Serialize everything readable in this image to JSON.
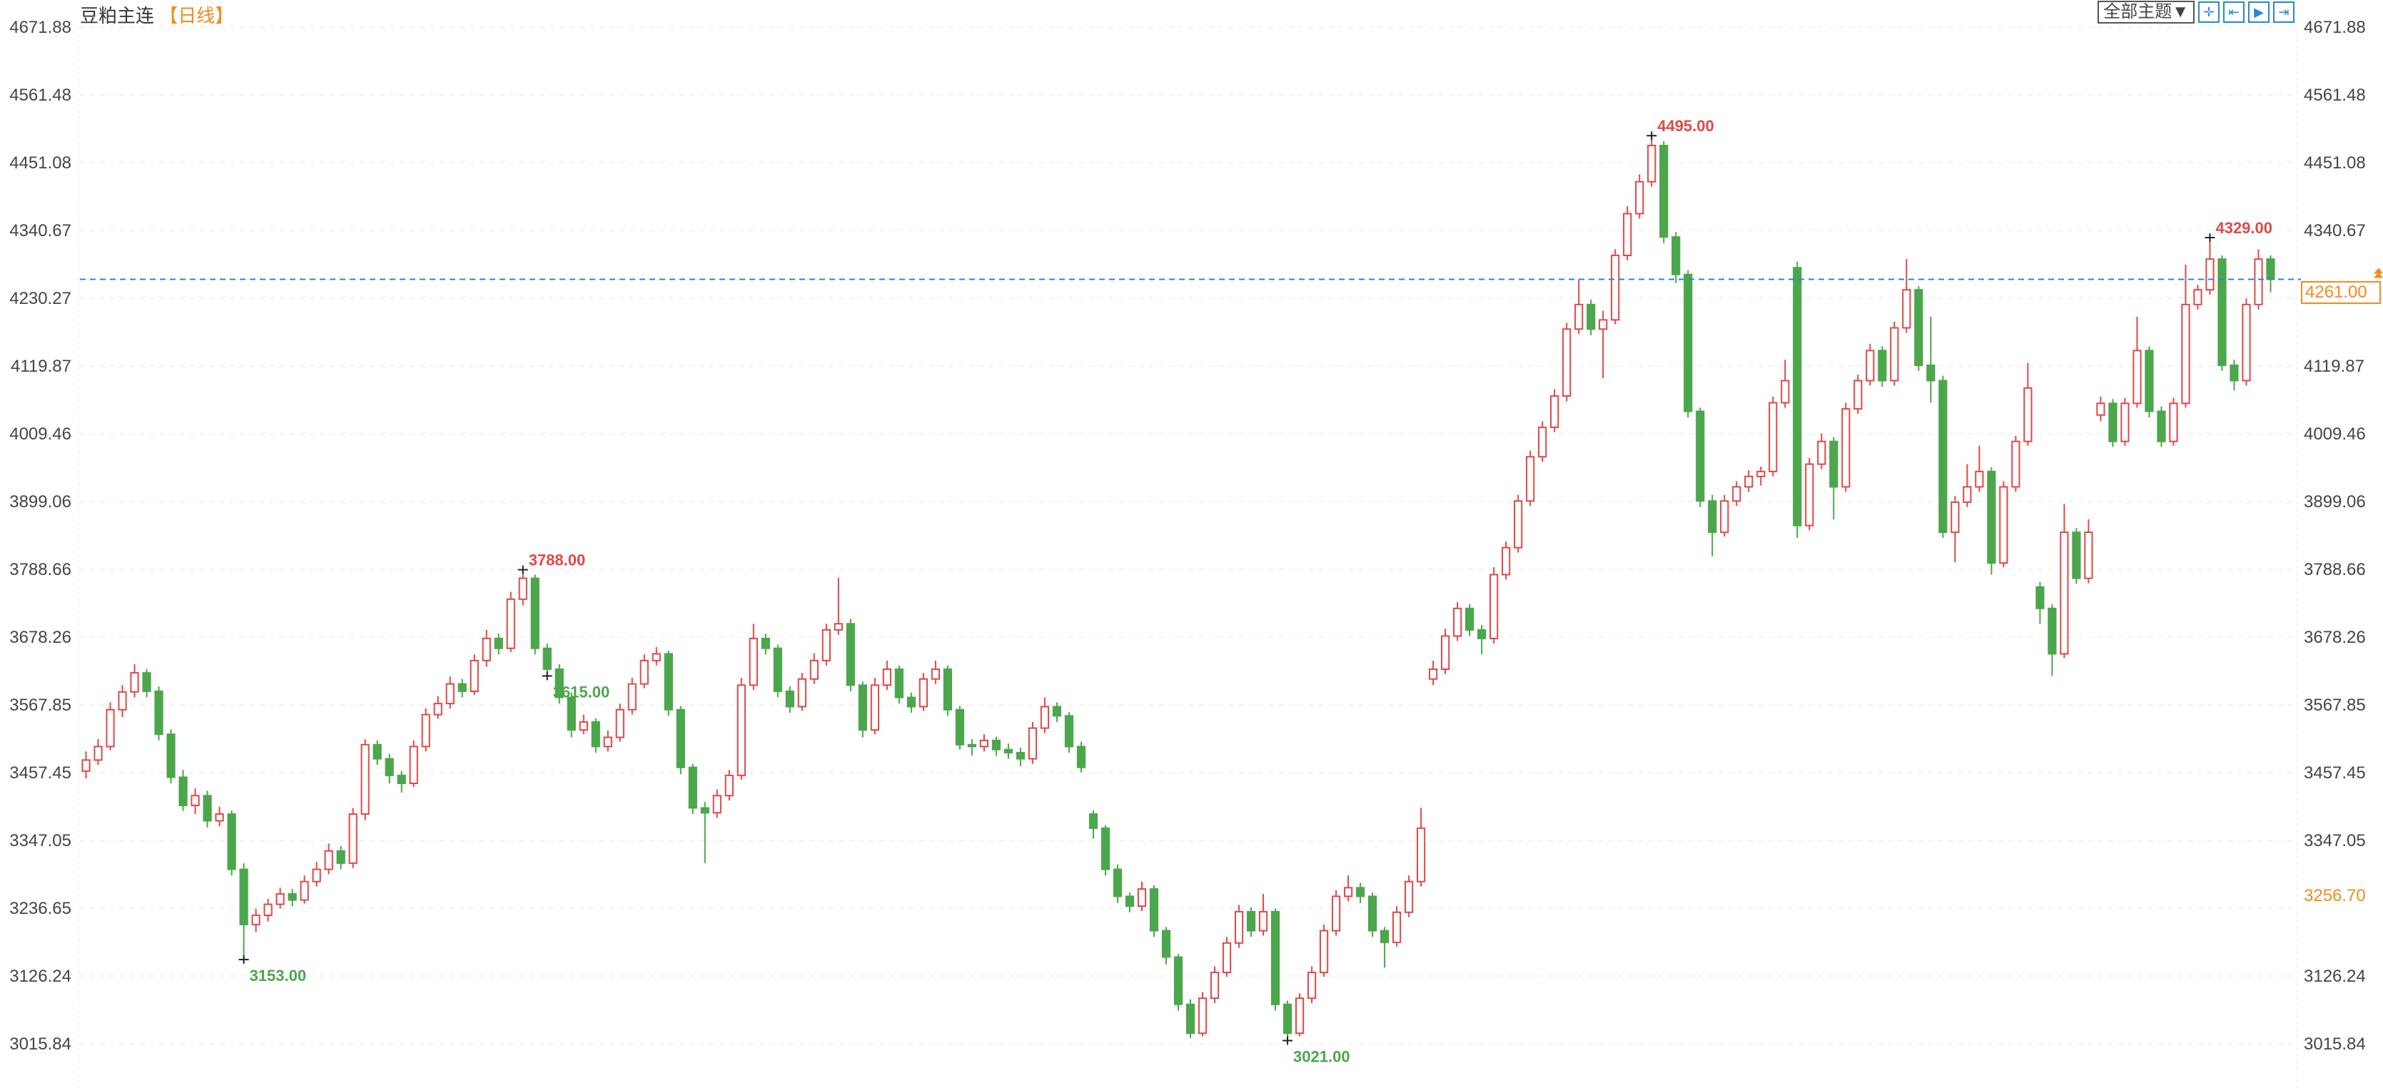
{
  "header": {
    "instrument": "豆粕主连",
    "period": "【日线】"
  },
  "toolbar": {
    "theme_label": "全部主题▼",
    "tools": [
      {
        "name": "crosshair-icon",
        "glyph": "✛"
      },
      {
        "name": "zoom-range-icon",
        "glyph": "⇤"
      },
      {
        "name": "play-icon",
        "glyph": "▶"
      },
      {
        "name": "go-latest-icon",
        "glyph": "⇥"
      }
    ]
  },
  "colors": {
    "up": "#e04848",
    "down": "#4ca64c",
    "last_line": "#2a86d0",
    "accent": "#f08c1e",
    "high_label": "#e04848",
    "low_label": "#4ca64c"
  },
  "right_axis": {
    "last_price": "4261.00",
    "ref_price": "3256.70"
  },
  "chart_data": {
    "type": "candlestick",
    "title": "豆粕主连",
    "ylim": [
      3015.84,
      4671.88
    ],
    "y_ticks": [
      "4671.88",
      "4561.48",
      "4451.08",
      "4340.67",
      "4230.27",
      "4119.87",
      "4009.46",
      "3899.06",
      "3788.66",
      "3678.26",
      "3567.85",
      "3457.45",
      "3347.05",
      "3236.65",
      "3126.24",
      "3015.84"
    ],
    "last_price": 4261.0,
    "annotations": [
      {
        "label": "3788.00",
        "value": 3788,
        "type": "high"
      },
      {
        "label": "3153.00",
        "value": 3153,
        "type": "low"
      },
      {
        "label": "3021.00",
        "value": 3021,
        "type": "low"
      },
      {
        "label": "4495.00",
        "value": 4495,
        "type": "high"
      },
      {
        "label": "3615.00",
        "value": 3615,
        "type": "low"
      },
      {
        "label": "4329.00",
        "value": 4329,
        "type": "high"
      }
    ],
    "ohlc": [
      [
        3460,
        3492,
        3448,
        3478
      ],
      [
        3478,
        3512,
        3470,
        3500
      ],
      [
        3500,
        3572,
        3494,
        3560
      ],
      [
        3560,
        3600,
        3548,
        3589
      ],
      [
        3589,
        3634,
        3580,
        3620
      ],
      [
        3620,
        3626,
        3580,
        3590
      ],
      [
        3590,
        3598,
        3510,
        3520
      ],
      [
        3520,
        3528,
        3440,
        3450
      ],
      [
        3450,
        3462,
        3395,
        3404
      ],
      [
        3404,
        3432,
        3390,
        3420
      ],
      [
        3420,
        3428,
        3368,
        3379
      ],
      [
        3379,
        3402,
        3370,
        3390
      ],
      [
        3390,
        3396,
        3290,
        3300
      ],
      [
        3300,
        3310,
        3153,
        3210
      ],
      [
        3210,
        3236,
        3198,
        3225
      ],
      [
        3225,
        3252,
        3215,
        3243
      ],
      [
        3243,
        3270,
        3236,
        3260
      ],
      [
        3260,
        3268,
        3240,
        3250
      ],
      [
        3250,
        3290,
        3244,
        3280
      ],
      [
        3280,
        3312,
        3272,
        3300
      ],
      [
        3300,
        3342,
        3292,
        3330
      ],
      [
        3330,
        3338,
        3300,
        3310
      ],
      [
        3310,
        3400,
        3302,
        3390
      ],
      [
        3390,
        3512,
        3380,
        3503
      ],
      [
        3503,
        3510,
        3470,
        3480
      ],
      [
        3480,
        3488,
        3440,
        3453
      ],
      [
        3453,
        3460,
        3425,
        3440
      ],
      [
        3440,
        3510,
        3434,
        3500
      ],
      [
        3500,
        3562,
        3492,
        3552
      ],
      [
        3552,
        3582,
        3545,
        3570
      ],
      [
        3570,
        3614,
        3562,
        3602
      ],
      [
        3602,
        3610,
        3580,
        3590
      ],
      [
        3590,
        3650,
        3584,
        3640
      ],
      [
        3640,
        3690,
        3630,
        3676
      ],
      [
        3676,
        3684,
        3650,
        3660
      ],
      [
        3660,
        3752,
        3654,
        3740
      ],
      [
        3740,
        3788,
        3730,
        3774
      ],
      [
        3774,
        3780,
        3650,
        3660
      ],
      [
        3660,
        3668,
        3615,
        3626
      ],
      [
        3626,
        3634,
        3570,
        3580
      ],
      [
        3580,
        3588,
        3515,
        3527
      ],
      [
        3527,
        3552,
        3520,
        3540
      ],
      [
        3540,
        3546,
        3490,
        3500
      ],
      [
        3500,
        3526,
        3492,
        3515
      ],
      [
        3515,
        3570,
        3508,
        3560
      ],
      [
        3560,
        3612,
        3552,
        3602
      ],
      [
        3602,
        3650,
        3595,
        3640
      ],
      [
        3640,
        3662,
        3632,
        3651
      ],
      [
        3651,
        3656,
        3550,
        3560
      ],
      [
        3560,
        3566,
        3455,
        3466
      ],
      [
        3466,
        3472,
        3390,
        3400
      ],
      [
        3400,
        3410,
        3310,
        3392
      ],
      [
        3392,
        3430,
        3384,
        3420
      ],
      [
        3420,
        3462,
        3412,
        3453
      ],
      [
        3453,
        3612,
        3446,
        3600
      ],
      [
        3600,
        3700,
        3592,
        3676
      ],
      [
        3676,
        3684,
        3650,
        3660
      ],
      [
        3660,
        3666,
        3580,
        3590
      ],
      [
        3590,
        3598,
        3555,
        3565
      ],
      [
        3565,
        3620,
        3558,
        3610
      ],
      [
        3610,
        3652,
        3602,
        3640
      ],
      [
        3640,
        3700,
        3632,
        3690
      ],
      [
        3690,
        3775,
        3682,
        3700
      ],
      [
        3700,
        3708,
        3590,
        3600
      ],
      [
        3600,
        3606,
        3515,
        3527
      ],
      [
        3527,
        3612,
        3520,
        3600
      ],
      [
        3600,
        3640,
        3592,
        3626
      ],
      [
        3626,
        3632,
        3570,
        3580
      ],
      [
        3580,
        3588,
        3555,
        3565
      ],
      [
        3565,
        3620,
        3558,
        3610
      ],
      [
        3610,
        3640,
        3602,
        3626
      ],
      [
        3626,
        3632,
        3550,
        3560
      ],
      [
        3560,
        3566,
        3495,
        3503
      ],
      [
        3503,
        3512,
        3485,
        3500
      ],
      [
        3500,
        3520,
        3492,
        3510
      ],
      [
        3510,
        3516,
        3485,
        3495
      ],
      [
        3495,
        3505,
        3480,
        3490
      ],
      [
        3490,
        3498,
        3468,
        3480
      ],
      [
        3480,
        3540,
        3472,
        3530
      ],
      [
        3530,
        3580,
        3522,
        3565
      ],
      [
        3565,
        3572,
        3540,
        3550
      ],
      [
        3550,
        3556,
        3490,
        3500
      ],
      [
        3500,
        3508,
        3458,
        3466
      ],
      [
        3390,
        3396,
        3350,
        3367
      ],
      [
        3367,
        3372,
        3290,
        3300
      ],
      [
        3300,
        3308,
        3245,
        3256
      ],
      [
        3256,
        3262,
        3230,
        3240
      ],
      [
        3240,
        3280,
        3232,
        3268
      ],
      [
        3268,
        3274,
        3190,
        3200
      ],
      [
        3200,
        3206,
        3145,
        3157
      ],
      [
        3157,
        3162,
        3070,
        3080
      ],
      [
        3080,
        3088,
        3025,
        3033
      ],
      [
        3033,
        3100,
        3028,
        3090
      ],
      [
        3090,
        3142,
        3082,
        3132
      ],
      [
        3132,
        3190,
        3125,
        3180
      ],
      [
        3180,
        3242,
        3172,
        3231
      ],
      [
        3231,
        3238,
        3190,
        3200
      ],
      [
        3200,
        3260,
        3192,
        3231
      ],
      [
        3231,
        3236,
        3070,
        3080
      ],
      [
        3080,
        3086,
        3021,
        3033
      ],
      [
        3033,
        3098,
        3028,
        3090
      ],
      [
        3090,
        3142,
        3082,
        3132
      ],
      [
        3132,
        3210,
        3125,
        3200
      ],
      [
        3200,
        3266,
        3192,
        3256
      ],
      [
        3256,
        3290,
        3248,
        3270
      ],
      [
        3270,
        3278,
        3245,
        3256
      ],
      [
        3256,
        3262,
        3190,
        3200
      ],
      [
        3200,
        3206,
        3140,
        3181
      ],
      [
        3181,
        3240,
        3174,
        3230
      ],
      [
        3230,
        3290,
        3222,
        3280
      ],
      [
        3280,
        3400,
        3272,
        3367
      ],
      [
        3610,
        3640,
        3600,
        3626
      ],
      [
        3626,
        3692,
        3618,
        3680
      ],
      [
        3680,
        3735,
        3672,
        3725
      ],
      [
        3725,
        3732,
        3680,
        3690
      ],
      [
        3690,
        3698,
        3650,
        3676
      ],
      [
        3676,
        3792,
        3668,
        3780
      ],
      [
        3780,
        3834,
        3772,
        3824
      ],
      [
        3824,
        3910,
        3816,
        3900
      ],
      [
        3900,
        3982,
        3892,
        3972
      ],
      [
        3972,
        4030,
        3964,
        4020
      ],
      [
        4020,
        4082,
        4012,
        4071
      ],
      [
        4071,
        4190,
        4062,
        4180
      ],
      [
        4180,
        4260,
        4172,
        4220
      ],
      [
        4220,
        4228,
        4170,
        4180
      ],
      [
        4180,
        4210,
        4100,
        4195
      ],
      [
        4195,
        4310,
        4188,
        4300
      ],
      [
        4300,
        4380,
        4292,
        4368
      ],
      [
        4368,
        4432,
        4360,
        4420
      ],
      [
        4420,
        4495,
        4412,
        4479
      ],
      [
        4479,
        4486,
        4320,
        4330
      ],
      [
        4330,
        4338,
        4255,
        4269
      ],
      [
        4269,
        4276,
        4036,
        4046
      ],
      [
        4046,
        4052,
        3890,
        3900
      ],
      [
        3900,
        3910,
        3810,
        3849
      ],
      [
        3849,
        3910,
        3842,
        3900
      ],
      [
        3900,
        3932,
        3892,
        3923
      ],
      [
        3923,
        3950,
        3915,
        3940
      ],
      [
        3940,
        3956,
        3925,
        3948
      ],
      [
        3948,
        4070,
        3940,
        4060
      ],
      [
        4060,
        4130,
        4052,
        4096
      ],
      [
        4280,
        4290,
        3840,
        3860
      ],
      [
        3860,
        3970,
        3852,
        3960
      ],
      [
        3960,
        4010,
        3952,
        3997
      ],
      [
        3997,
        4004,
        3870,
        3923
      ],
      [
        3923,
        4060,
        3915,
        4050
      ],
      [
        4050,
        4106,
        4042,
        4096
      ],
      [
        4096,
        4156,
        4088,
        4145
      ],
      [
        4145,
        4152,
        4086,
        4096
      ],
      [
        4096,
        4192,
        4088,
        4182
      ],
      [
        4182,
        4294,
        4174,
        4244
      ],
      [
        4244,
        4250,
        4112,
        4121
      ],
      [
        4121,
        4200,
        4060,
        4096
      ],
      [
        4096,
        4104,
        3840,
        3849
      ],
      [
        3849,
        3908,
        3800,
        3898
      ],
      [
        3898,
        3960,
        3890,
        3923
      ],
      [
        3923,
        3990,
        3915,
        3948
      ],
      [
        3948,
        3955,
        3780,
        3799
      ],
      [
        3799,
        3932,
        3792,
        3923
      ],
      [
        3923,
        4006,
        3915,
        3997
      ],
      [
        3997,
        4125,
        3990,
        4084
      ],
      [
        3760,
        3768,
        3700,
        3725
      ],
      [
        3725,
        3732,
        3615,
        3651
      ],
      [
        3651,
        3895,
        3644,
        3849
      ],
      [
        3849,
        3856,
        3765,
        3774
      ],
      [
        3774,
        3870,
        3766,
        3849
      ],
      [
        4040,
        4070,
        4030,
        4059
      ],
      [
        4059,
        4066,
        3988,
        3997
      ],
      [
        3997,
        4068,
        3990,
        4059
      ],
      [
        4059,
        4200,
        4052,
        4145
      ],
      [
        4145,
        4152,
        4036,
        4046
      ],
      [
        4046,
        4054,
        3988,
        3997
      ],
      [
        3997,
        4068,
        3990,
        4059
      ],
      [
        4059,
        4285,
        4052,
        4220
      ],
      [
        4220,
        4252,
        4212,
        4244
      ],
      [
        4244,
        4329,
        4236,
        4294
      ],
      [
        4294,
        4300,
        4112,
        4121
      ],
      [
        4121,
        4130,
        4080,
        4096
      ],
      [
        4096,
        4230,
        4088,
        4220
      ],
      [
        4220,
        4310,
        4212,
        4294
      ],
      [
        4294,
        4300,
        4240,
        4261
      ]
    ]
  }
}
